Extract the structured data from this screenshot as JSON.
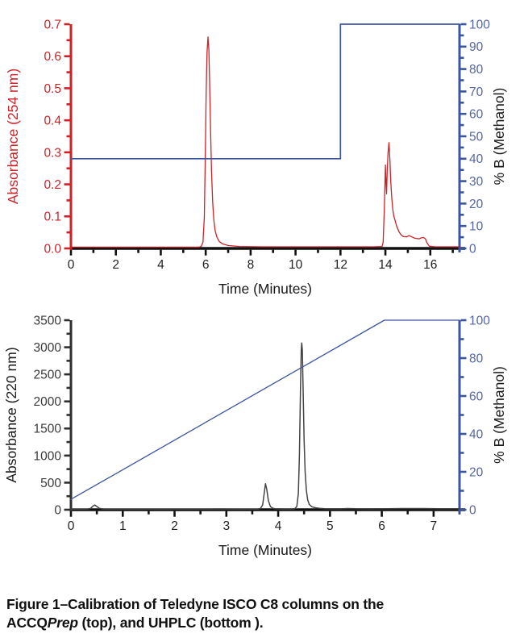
{
  "caption": {
    "line1": "Figure 1–Calibration of Teledyne ISCO C8 columns on the",
    "line2_pre": "ACCQ",
    "line2_italic": "Prep",
    "line2_post": " (top), and UHPLC (bottom )."
  },
  "colors": {
    "red": "#cc2328",
    "blue_line": "#3c55a0",
    "blue_label": "#5566a6",
    "black_trace": "#444444",
    "axis_black": "#111111",
    "text_black": "#1a1a1a"
  },
  "chart_data": [
    {
      "type": "line",
      "name": "accqprep-chromatogram",
      "title": "",
      "xlabel": "Time (Minutes)",
      "x_range": [
        0,
        17.3
      ],
      "x_major": 2,
      "x_minor": 1,
      "grid": false,
      "legend": "none",
      "left_axis": {
        "label": "Absorbance (254 nm)",
        "range": [
          0,
          0.7
        ],
        "major": 0.1,
        "minor": 0.05,
        "decimals": 1,
        "color": "#cc2328",
        "label_color": "#cc2328",
        "title_color": "#cc2328"
      },
      "right_axis": {
        "label": "% B (Methanol)",
        "range": [
          0,
          100
        ],
        "major": 10,
        "minor": 5,
        "decimals": 0,
        "color": "#3c55a0",
        "label_color": "#5566a6",
        "title_color": "#1a1a1a"
      },
      "series": [
        {
          "name": "absorbance-254nm",
          "axis": "left",
          "color": "#cc2328",
          "width": 1.3,
          "points": [
            [
              0,
              0.004
            ],
            [
              2,
              0.004
            ],
            [
              4,
              0.004
            ],
            [
              5.7,
              0.004
            ],
            [
              5.8,
              0.006
            ],
            [
              5.88,
              0.02
            ],
            [
              5.94,
              0.1
            ],
            [
              5.98,
              0.28
            ],
            [
              6.02,
              0.48
            ],
            [
              6.06,
              0.61
            ],
            [
              6.1,
              0.66
            ],
            [
              6.14,
              0.62
            ],
            [
              6.18,
              0.5
            ],
            [
              6.22,
              0.36
            ],
            [
              6.26,
              0.24
            ],
            [
              6.31,
              0.145
            ],
            [
              6.36,
              0.09
            ],
            [
              6.42,
              0.055
            ],
            [
              6.5,
              0.035
            ],
            [
              6.6,
              0.022
            ],
            [
              6.75,
              0.014
            ],
            [
              7.0,
              0.009
            ],
            [
              7.5,
              0.006
            ],
            [
              8.5,
              0.005
            ],
            [
              10,
              0.005
            ],
            [
              12,
              0.005
            ],
            [
              13.5,
              0.005
            ],
            [
              13.85,
              0.006
            ],
            [
              13.9,
              0.02
            ],
            [
              13.95,
              0.12
            ],
            [
              14.0,
              0.26
            ],
            [
              14.03,
              0.2
            ],
            [
              14.05,
              0.17
            ],
            [
              14.08,
              0.24
            ],
            [
              14.12,
              0.3
            ],
            [
              14.16,
              0.33
            ],
            [
              14.2,
              0.28
            ],
            [
              14.24,
              0.21
            ],
            [
              14.28,
              0.16
            ],
            [
              14.33,
              0.12
            ],
            [
              14.38,
              0.1
            ],
            [
              14.44,
              0.085
            ],
            [
              14.5,
              0.07
            ],
            [
              14.6,
              0.052
            ],
            [
              14.7,
              0.042
            ],
            [
              14.8,
              0.037
            ],
            [
              14.95,
              0.036
            ],
            [
              15.05,
              0.04
            ],
            [
              15.15,
              0.037
            ],
            [
              15.3,
              0.032
            ],
            [
              15.5,
              0.03
            ],
            [
              15.6,
              0.033
            ],
            [
              15.7,
              0.034
            ],
            [
              15.78,
              0.03
            ],
            [
              15.85,
              0.018
            ],
            [
              15.95,
              0.007
            ],
            [
              16.2,
              0.005
            ],
            [
              17.3,
              0.005
            ]
          ]
        },
        {
          "name": "gradient-percent-b",
          "axis": "right",
          "color": "#3c55a0",
          "width": 1.7,
          "points": [
            [
              0,
              40
            ],
            [
              12,
              40
            ],
            [
              12,
              100
            ],
            [
              17.3,
              100
            ]
          ]
        }
      ]
    },
    {
      "type": "line",
      "name": "uhplc-chromatogram",
      "title": "",
      "xlabel": "Time (Minutes)",
      "x_range": [
        0,
        7.5
      ],
      "x_major": 1,
      "x_minor": 0.5,
      "grid": false,
      "legend": "none",
      "left_axis": {
        "label": "Absorbance (220 nm)",
        "range": [
          0,
          3500
        ],
        "major": 500,
        "minor": 250,
        "decimals": 0,
        "color": "#2f2f2f",
        "label_color": "#3a3a3a",
        "title_color": "#1a1a1a"
      },
      "right_axis": {
        "label": "% B (Methanol)",
        "range": [
          0,
          100
        ],
        "major": 20,
        "minor": 10,
        "decimals": 0,
        "color": "#3c55a0",
        "label_color": "#5566a6",
        "title_color": "#1a1a1a"
      },
      "series": [
        {
          "name": "absorbance-220nm",
          "axis": "left",
          "color": "#444444",
          "width": 1.5,
          "points": [
            [
              0,
              11
            ],
            [
              0.25,
              11
            ],
            [
              0.33,
              13
            ],
            [
              0.38,
              25
            ],
            [
              0.43,
              70
            ],
            [
              0.46,
              88
            ],
            [
              0.5,
              60
            ],
            [
              0.55,
              25
            ],
            [
              0.62,
              14
            ],
            [
              0.75,
              11
            ],
            [
              1.5,
              10
            ],
            [
              2.5,
              11
            ],
            [
              2.9,
              13
            ],
            [
              3.3,
              12
            ],
            [
              3.55,
              12
            ],
            [
              3.62,
              14
            ],
            [
              3.66,
              25
            ],
            [
              3.7,
              90
            ],
            [
              3.73,
              300
            ],
            [
              3.755,
              480
            ],
            [
              3.78,
              380
            ],
            [
              3.81,
              170
            ],
            [
              3.85,
              60
            ],
            [
              3.9,
              25
            ],
            [
              3.95,
              16
            ],
            [
              4.1,
              13
            ],
            [
              4.25,
              14
            ],
            [
              4.32,
              18
            ],
            [
              4.36,
              60
            ],
            [
              4.39,
              300
            ],
            [
              4.41,
              1000
            ],
            [
              4.43,
              2200
            ],
            [
              4.445,
              2950
            ],
            [
              4.455,
              3080
            ],
            [
              4.465,
              2950
            ],
            [
              4.48,
              2300
            ],
            [
              4.5,
              1300
            ],
            [
              4.52,
              700
            ],
            [
              4.545,
              350
            ],
            [
              4.57,
              180
            ],
            [
              4.6,
              100
            ],
            [
              4.65,
              55
            ],
            [
              4.72,
              35
            ],
            [
              4.8,
              25
            ],
            [
              4.9,
              18
            ],
            [
              5.0,
              16
            ],
            [
              5.2,
              17
            ],
            [
              5.35,
              22
            ],
            [
              5.5,
              18
            ],
            [
              5.8,
              16
            ],
            [
              6.1,
              18
            ],
            [
              6.4,
              22
            ],
            [
              6.8,
              22
            ],
            [
              7.1,
              20
            ],
            [
              7.5,
              18
            ]
          ]
        },
        {
          "name": "gradient-percent-b",
          "axis": "right",
          "color": "#3c55a0",
          "width": 1.3,
          "points": [
            [
              0,
              5.5
            ],
            [
              6.05,
              100
            ],
            [
              7.5,
              100
            ]
          ]
        }
      ]
    }
  ]
}
